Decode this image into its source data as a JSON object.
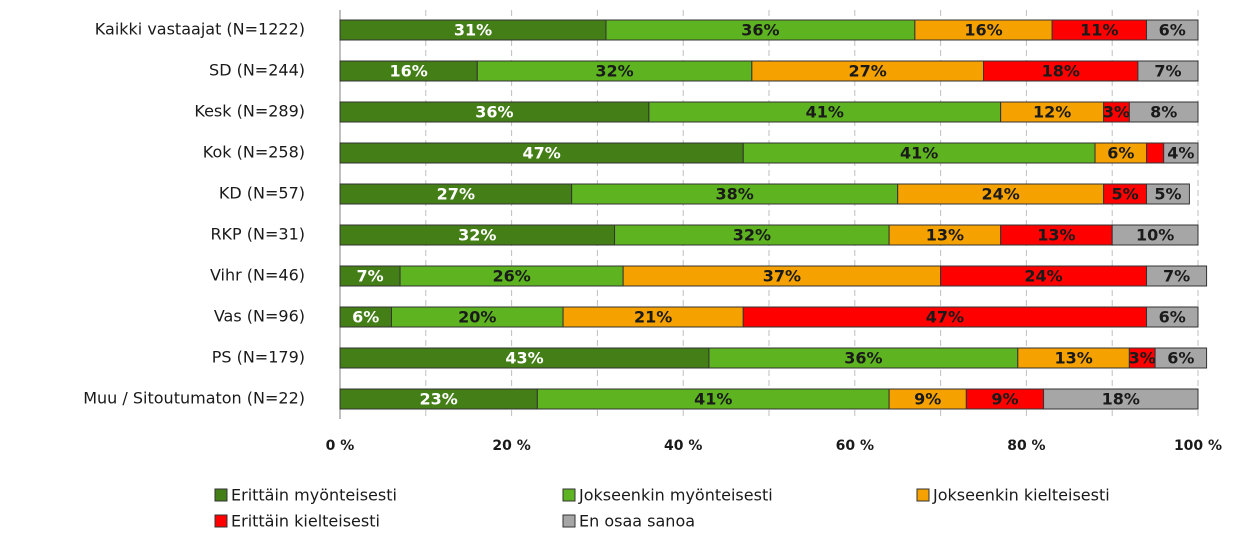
{
  "chart_data": {
    "type": "stacked-barh",
    "categories": [
      "Kaikki vastaajat (N=1222)",
      "SD (N=244)",
      "Kesk (N=289)",
      "Kok (N=258)",
      "KD (N=57)",
      "RKP (N=31)",
      "Vihr (N=46)",
      "Vas (N=96)",
      "PS (N=179)",
      "Muu / Sitoutumaton (N=22)"
    ],
    "series": [
      {
        "name": "Erittäin myönteisesti",
        "color": "#437e16",
        "label_color": "#ffffff",
        "values": [
          31,
          16,
          36,
          47,
          27,
          32,
          7,
          6,
          43,
          23
        ],
        "value_labels": [
          "31%",
          "16%",
          "36%",
          "47%",
          "27%",
          "32%",
          "7%",
          "6%",
          "43%",
          "23%"
        ]
      },
      {
        "name": "Jokseenkin myönteisesti",
        "color": "#5db420",
        "label_color": "#1a1a1a",
        "values": [
          36,
          32,
          41,
          41,
          38,
          32,
          26,
          20,
          36,
          41
        ],
        "value_labels": [
          "36%",
          "32%",
          "41%",
          "41%",
          "38%",
          "32%",
          "26%",
          "20%",
          "36%",
          "41%"
        ]
      },
      {
        "name": "Jokseenkin kielteisesti",
        "color": "#f5a200",
        "label_color": "#1a1a1a",
        "values": [
          16,
          27,
          12,
          6,
          24,
          13,
          37,
          21,
          13,
          9
        ],
        "value_labels": [
          "16%",
          "27%",
          "12%",
          "6%",
          "24%",
          "13%",
          "37%",
          "21%",
          "13%",
          "9%"
        ]
      },
      {
        "name": "Erittäin kielteisesti",
        "color": "#ff0000",
        "label_color": "#1a1a1a",
        "values": [
          11,
          18,
          3,
          2,
          5,
          13,
          24,
          47,
          3,
          9
        ],
        "value_labels": [
          "11%",
          "18%",
          "3%",
          null,
          "5%",
          "13%",
          "24%",
          "47%",
          "3%",
          "9%"
        ]
      },
      {
        "name": "En osaa sanoa",
        "color": "#a6a6a6",
        "label_color": "#1a1a1a",
        "values": [
          6,
          7,
          8,
          4,
          5,
          10,
          7,
          6,
          6,
          18
        ],
        "value_labels": [
          "6%",
          "7%",
          "8%",
          "4%",
          "5%",
          "10%",
          "7%",
          "6%",
          "6%",
          "18%"
        ]
      }
    ],
    "xlim": [
      0,
      100
    ],
    "xticks": [
      {
        "value": 0,
        "label": "0 %"
      },
      {
        "value": 20,
        "label": "20 %"
      },
      {
        "value": 40,
        "label": "40 %"
      },
      {
        "value": 60,
        "label": "60 %"
      },
      {
        "value": 80,
        "label": "80 %"
      },
      {
        "value": 100,
        "label": "100 %"
      }
    ],
    "minor_xticks": [
      10,
      30,
      50,
      70,
      90
    ],
    "grid": true,
    "legend": "bottom"
  }
}
